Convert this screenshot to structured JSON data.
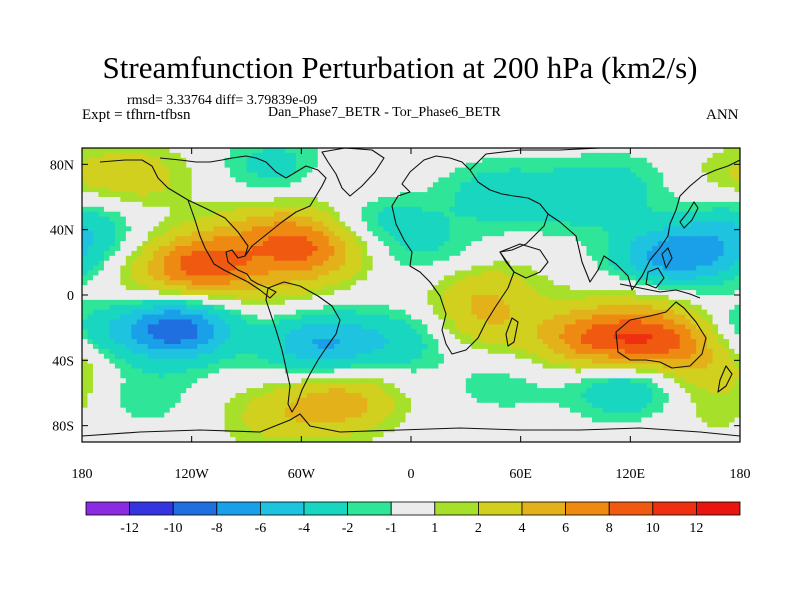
{
  "chart_data": {
    "type": "heatmap",
    "title": "Streamfunction Perturbation at 200 hPa (km2/s)",
    "stats": "rmsd= 3.33764 diff= 3.79839e-09",
    "experiment": "Expt = tfhrn-tfbsn",
    "cases": "Dan_Phase7_BETR - Tor_Phase6_BETR",
    "season": "ANN",
    "xlim": [
      -180,
      180
    ],
    "ylim": [
      -90,
      90
    ],
    "x_ticks": [
      {
        "value": -180,
        "label": "180"
      },
      {
        "value": -120,
        "label": "120W"
      },
      {
        "value": -60,
        "label": "60W"
      },
      {
        "value": 0,
        "label": "0"
      },
      {
        "value": 60,
        "label": "60E"
      },
      {
        "value": 120,
        "label": "120E"
      },
      {
        "value": 180,
        "label": "180"
      }
    ],
    "y_ticks": [
      {
        "value": 80,
        "label": "80N"
      },
      {
        "value": 40,
        "label": "40N"
      },
      {
        "value": 0,
        "label": "0"
      },
      {
        "value": -40,
        "label": "40S"
      },
      {
        "value": -80,
        "label": "80S"
      }
    ],
    "colorbar": {
      "labels": [
        "-12",
        "-10",
        "-8",
        "-6",
        "-4",
        "-2",
        "-1",
        "1",
        "2",
        "4",
        "6",
        "8",
        "10",
        "12"
      ],
      "colors": [
        "#8a2be2",
        "#3535e0",
        "#1f6fe0",
        "#1aa0e8",
        "#1ec3e0",
        "#19d6c0",
        "#2ee598",
        "#ececec",
        "#a6e02a",
        "#d2d01e",
        "#e3b21a",
        "#ee8a12",
        "#f05a10",
        "#ee3010",
        "#e8160e"
      ],
      "bounds": [
        -12,
        -10,
        -8,
        -6,
        -4,
        -2,
        -1,
        1,
        2,
        4,
        6,
        8,
        10,
        12
      ]
    },
    "field_centers": [
      {
        "lon": -150,
        "lat": 72,
        "value": 3
      },
      {
        "lon": -178,
        "lat": 45,
        "value": -2.5
      },
      {
        "lon": -115,
        "lat": 18,
        "value": 9
      },
      {
        "lon": -78,
        "lat": 40,
        "value": 3.5
      },
      {
        "lon": -72,
        "lat": 78,
        "value": -3
      },
      {
        "lon": -55,
        "lat": 28,
        "value": 7
      },
      {
        "lon": -35,
        "lat": 68,
        "value": 2
      },
      {
        "lon": -20,
        "lat": 48,
        "value": -3
      },
      {
        "lon": 10,
        "lat": 28,
        "value": -2
      },
      {
        "lon": 48,
        "lat": 62,
        "value": -3
      },
      {
        "lon": 90,
        "lat": 58,
        "value": -2.5
      },
      {
        "lon": 85,
        "lat": 40,
        "value": 0
      },
      {
        "lon": 115,
        "lat": 68,
        "value": -2
      },
      {
        "lon": 140,
        "lat": 22,
        "value": -6.5
      },
      {
        "lon": 168,
        "lat": 28,
        "value": -3
      },
      {
        "lon": 175,
        "lat": 72,
        "value": 1.5
      },
      {
        "lon": -150,
        "lat": 2,
        "value": 1.5
      },
      {
        "lon": -75,
        "lat": 2,
        "value": 1.5
      },
      {
        "lon": 40,
        "lat": 3,
        "value": 3
      },
      {
        "lon": 130,
        "lat": 3,
        "value": 1.5
      },
      {
        "lon": -128,
        "lat": -20,
        "value": -9.5
      },
      {
        "lon": -175,
        "lat": -22,
        "value": -3
      },
      {
        "lon": -50,
        "lat": -30,
        "value": -6
      },
      {
        "lon": -5,
        "lat": -28,
        "value": -3
      },
      {
        "lon": 40,
        "lat": -18,
        "value": 3
      },
      {
        "lon": 100,
        "lat": -27,
        "value": 7.5
      },
      {
        "lon": 138,
        "lat": -28,
        "value": 8
      },
      {
        "lon": 170,
        "lat": -45,
        "value": 2.5
      },
      {
        "lon": -150,
        "lat": -62,
        "value": -2
      },
      {
        "lon": -38,
        "lat": -65,
        "value": 5
      },
      {
        "lon": -75,
        "lat": -75,
        "value": 2.5
      },
      {
        "lon": 50,
        "lat": -55,
        "value": -1.5
      },
      {
        "lon": 118,
        "lat": -55,
        "value": -4.5
      },
      {
        "lon": 170,
        "lat": -70,
        "value": 1.5
      }
    ]
  }
}
